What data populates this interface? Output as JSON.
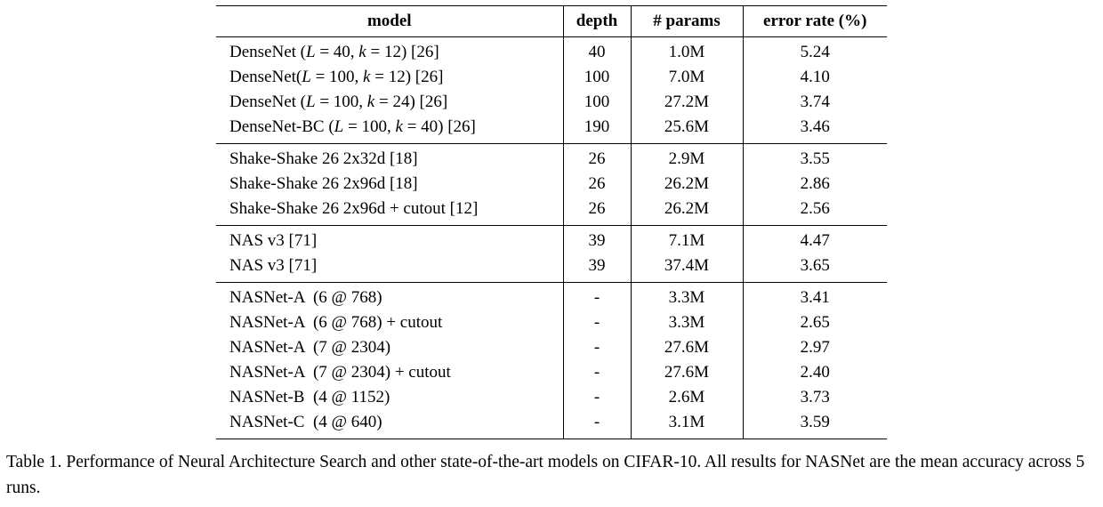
{
  "table": {
    "headers": [
      "model",
      "depth",
      "# params",
      "error rate (%)"
    ],
    "groups": [
      [
        [
          "DenseNet (L = 40, k = 12) [26]",
          "40",
          "1.0M",
          "5.24"
        ],
        [
          "DenseNet(L = 100, k = 12) [26]",
          "100",
          "7.0M",
          "4.10"
        ],
        [
          "DenseNet (L = 100, k = 24) [26]",
          "100",
          "27.2M",
          "3.74"
        ],
        [
          "DenseNet-BC (L = 100, k = 40) [26]",
          "190",
          "25.6M",
          "3.46"
        ]
      ],
      [
        [
          "Shake-Shake 26 2x32d [18]",
          "26",
          "2.9M",
          "3.55"
        ],
        [
          "Shake-Shake 26 2x96d [18]",
          "26",
          "26.2M",
          "2.86"
        ],
        [
          "Shake-Shake 26 2x96d + cutout [12]",
          "26",
          "26.2M",
          "2.56"
        ]
      ],
      [
        [
          "NAS v3 [71]",
          "39",
          "7.1M",
          "4.47"
        ],
        [
          "NAS v3 [71]",
          "39",
          "37.4M",
          "3.65"
        ]
      ],
      [
        [
          "NASNet-A  (6 @ 768)",
          "-",
          "3.3M",
          "3.41"
        ],
        [
          "NASNet-A  (6 @ 768) + cutout",
          "-",
          "3.3M",
          "2.65"
        ],
        [
          "NASNet-A  (7 @ 2304)",
          "-",
          "27.6M",
          "2.97"
        ],
        [
          "NASNet-A  (7 @ 2304) + cutout",
          "-",
          "27.6M",
          "2.40"
        ],
        [
          "NASNet-B  (4 @ 1152)",
          "-",
          "2.6M",
          "3.73"
        ],
        [
          "NASNet-C  (4 @ 640)",
          "-",
          "3.1M",
          "3.59"
        ]
      ]
    ]
  },
  "caption": "Table 1. Performance of Neural Architecture Search and other state-of-the-art models on CIFAR-10. All results for NASNet are the mean accuracy across 5 runs."
}
